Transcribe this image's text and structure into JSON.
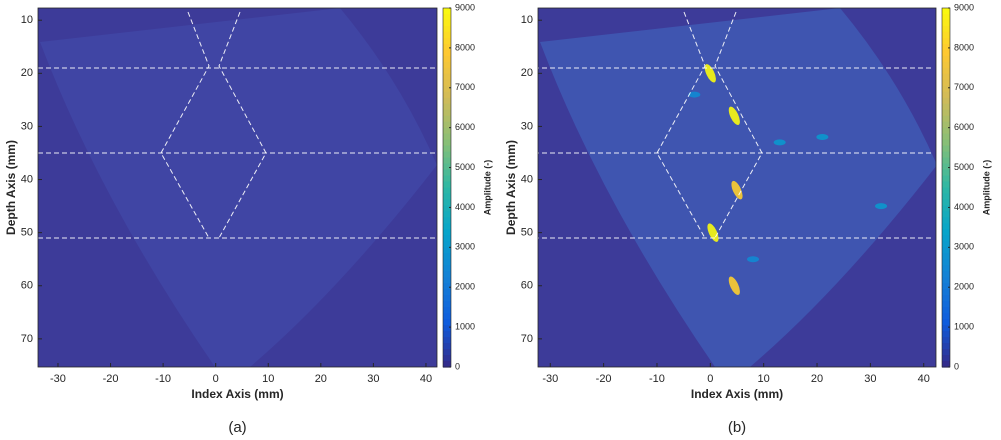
{
  "chart_data": [
    {
      "type": "heatmap",
      "caption": "(a)",
      "xlabel": "Index Axis (mm)",
      "ylabel": "Depth Axis (mm)",
      "colorbar_label": "Amplitude (-)",
      "xlim": [
        -33.8,
        42.1
      ],
      "xticks": [
        -30,
        -20,
        -10,
        0,
        10,
        20,
        30,
        40
      ],
      "ylim": [
        7.7,
        75.3
      ],
      "yticks": [
        10,
        20,
        30,
        40,
        50,
        60,
        70
      ],
      "y_reversed": true,
      "clim": [
        0,
        9000
      ],
      "cticks": [
        0,
        1000,
        2000,
        3000,
        4000,
        5000,
        6000,
        7000,
        8000,
        9000
      ],
      "colormap": [
        "#352a87",
        "#0f5cdd",
        "#1481d6",
        "#06a4ca",
        "#2eb7a4",
        "#87bf77",
        "#d1bb59",
        "#fec832",
        "#f9fb0e"
      ],
      "background": "#3d3b99",
      "fan_color": "#4045a4",
      "hotspots": {
        "x": [],
        "y": [],
        "amplitude": []
      }
    },
    {
      "type": "heatmap",
      "caption": "(b)",
      "xlabel": "Index Axis (mm)",
      "ylabel": "Depth Axis (mm)",
      "colorbar_label": "Amplitude (-)",
      "xlim": [
        -32.3,
        42.3
      ],
      "xticks": [
        -30,
        -20,
        -10,
        0,
        10,
        20,
        30,
        40
      ],
      "ylim": [
        7.7,
        75.3
      ],
      "yticks": [
        10,
        20,
        30,
        40,
        50,
        60,
        70
      ],
      "y_reversed": true,
      "clim": [
        0,
        9000
      ],
      "cticks": [
        0,
        1000,
        2000,
        3000,
        4000,
        5000,
        6000,
        7000,
        8000,
        9000
      ],
      "colormap": [
        "#352a87",
        "#0f5cdd",
        "#1481d6",
        "#06a4ca",
        "#2eb7a4",
        "#87bf77",
        "#d1bb59",
        "#fec832",
        "#f9fb0e"
      ],
      "background": "#3d3b99",
      "fan_color": "#3f55b0",
      "hotspots": {
        "x": [
          0,
          4.5,
          5,
          0.5,
          4.5,
          13,
          21,
          32,
          -3,
          8
        ],
        "y": [
          20,
          28,
          42,
          50,
          60,
          33,
          32,
          45,
          24,
          55
        ],
        "amplitude": [
          9000,
          9000,
          8000,
          9000,
          8000,
          3000,
          3000,
          3000,
          2500,
          2500
        ]
      }
    }
  ]
}
